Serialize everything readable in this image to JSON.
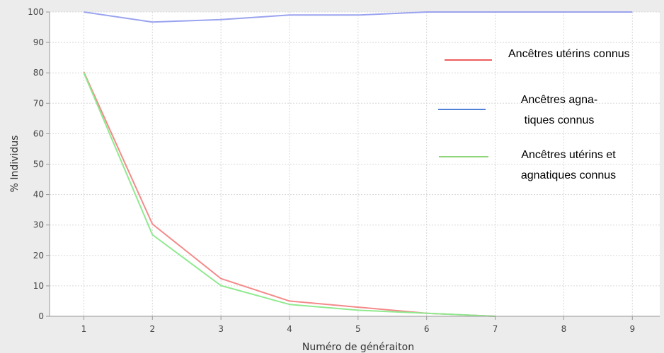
{
  "chart_data": {
    "type": "line",
    "x": [
      1,
      2,
      3,
      4,
      5,
      6,
      7,
      8,
      9
    ],
    "xlabel": "Numéro de généraiton",
    "ylabel": "% Individus",
    "xlim": [
      0.5,
      9.4
    ],
    "ylim": [
      0,
      100
    ],
    "yticks": [
      0,
      10,
      20,
      30,
      40,
      50,
      60,
      70,
      80,
      90,
      100
    ],
    "xticks": [
      1,
      2,
      3,
      4,
      5,
      6,
      7,
      8,
      9
    ],
    "grid": true,
    "legend_position": "right",
    "series": [
      {
        "name": "Ancêtres utérins connus",
        "legend_lines": [
          "Ancêtres utérins connus"
        ],
        "color": "#f48a8a",
        "values": [
          80.3,
          30.3,
          12.4,
          5.0,
          3.0,
          1.0,
          0,
          null,
          null
        ]
      },
      {
        "name": "Ancêtres agna-tiques connus",
        "legend_lines": [
          "Ancêtres agna-",
          "tiques connus"
        ],
        "color": "#9aa3ef",
        "values": [
          100,
          96.7,
          97.5,
          99.0,
          99.0,
          100,
          100,
          100,
          100
        ]
      },
      {
        "name": "Ancêtres utérins et agnatiques connus",
        "legend_lines": [
          "Ancêtres utérins et",
          "agnatiques connus"
        ],
        "color": "#8fea8f",
        "values": [
          80.0,
          26.8,
          10.1,
          3.9,
          2.0,
          1.0,
          0,
          null,
          null
        ]
      }
    ]
  },
  "legend_colors": [
    "#ee5c5c",
    "#4f81d6",
    "#8fd67a"
  ]
}
